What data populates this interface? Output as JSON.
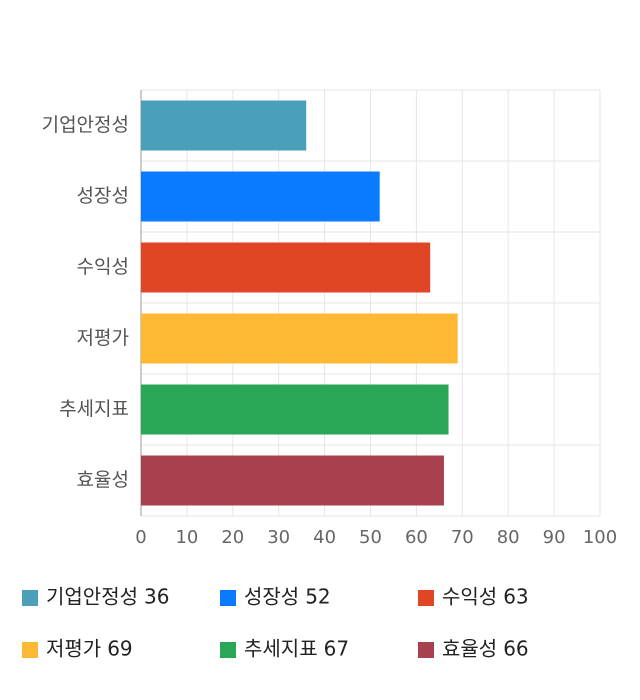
{
  "chart_data": {
    "type": "bar",
    "orientation": "horizontal",
    "categories": [
      "기업안정성",
      "성장성",
      "수익성",
      "저평가",
      "추세지표",
      "효율성"
    ],
    "values": [
      36,
      52,
      63,
      69,
      67,
      66
    ],
    "colors": [
      "#4aa0b8",
      "#0a7bff",
      "#e04526",
      "#fdb933",
      "#29a656",
      "#a8414d"
    ],
    "xlim": [
      0,
      100
    ],
    "xticks": [
      0,
      10,
      20,
      30,
      40,
      50,
      60,
      70,
      80,
      90,
      100
    ],
    "grid": true,
    "legend": "bottom"
  }
}
